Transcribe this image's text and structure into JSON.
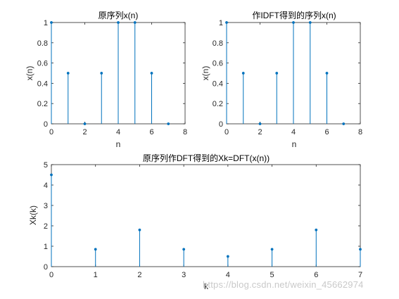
{
  "chart_data": [
    {
      "type": "stem",
      "title": "原序列x(n)",
      "xlabel": "n",
      "ylabel": "x(n)",
      "ylabel_sub": "",
      "xlim": [
        0,
        8
      ],
      "ylim": [
        0,
        1
      ],
      "xticks": [
        "0",
        "2",
        "4",
        "6",
        "8"
      ],
      "yticks": [
        "0",
        "0.2",
        "0.4",
        "0.6",
        "0.8",
        "1"
      ],
      "x": [
        0,
        1,
        2,
        3,
        4,
        5,
        6,
        7
      ],
      "values": [
        1,
        0.5,
        0,
        0.5,
        1,
        1,
        0.5,
        0
      ]
    },
    {
      "type": "stem",
      "title": "作IDFT得到的序列x(n)",
      "xlabel": "n",
      "ylabel": "x(n)",
      "ylabel_sub": "1",
      "xlim": [
        0,
        8
      ],
      "ylim": [
        0,
        1
      ],
      "xticks": [
        "0",
        "2",
        "4",
        "6",
        "8"
      ],
      "yticks": [
        "0",
        "0.2",
        "0.4",
        "0.6",
        "0.8",
        "1"
      ],
      "x": [
        0,
        1,
        2,
        3,
        4,
        5,
        6,
        7
      ],
      "values": [
        1,
        0.5,
        0,
        0.5,
        1,
        1,
        0.5,
        0
      ]
    },
    {
      "type": "stem",
      "title": "原序列作DFT得到的Xk=DFT(x(n))",
      "xlabel": "k",
      "ylabel": "Xk(k)",
      "ylabel_sub": "",
      "xlim": [
        0,
        7
      ],
      "ylim": [
        0,
        5
      ],
      "xticks": [
        "0",
        "1",
        "2",
        "3",
        "4",
        "5",
        "6",
        "7"
      ],
      "yticks": [
        "0",
        "1",
        "2",
        "3",
        "4",
        "5"
      ],
      "x": [
        0,
        1,
        2,
        3,
        4,
        5,
        6,
        7
      ],
      "values": [
        4.5,
        0.85,
        1.8,
        0.85,
        0.5,
        0.85,
        1.8,
        0.85
      ]
    }
  ],
  "colors": {
    "stem": "#0072BD",
    "axis": "#262626"
  },
  "watermark": "https://blog.csdn.net/weixin_45662974"
}
